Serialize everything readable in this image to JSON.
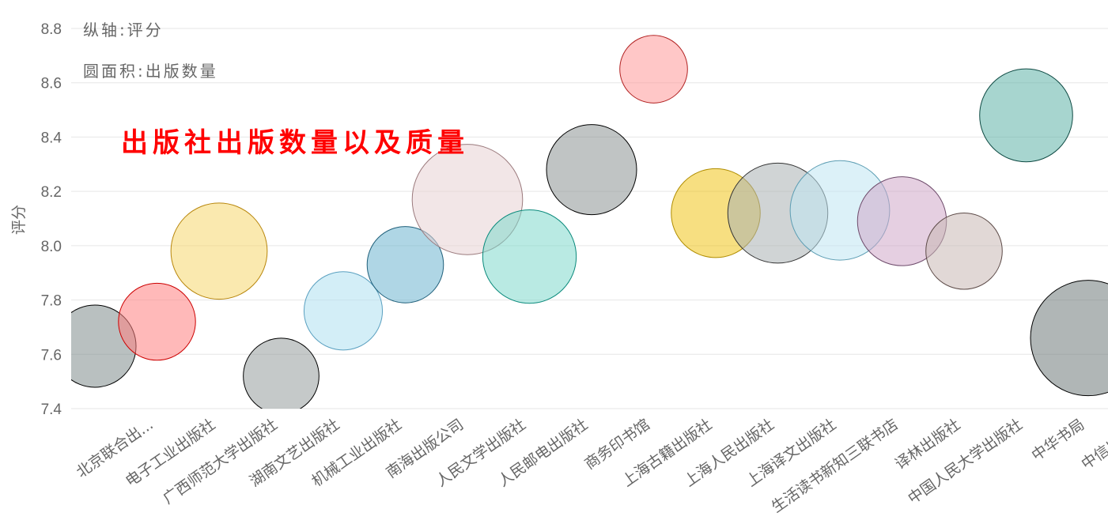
{
  "chart_data": {
    "type": "bubble",
    "title": "出版社出版数量以及质量",
    "notes": [
      "纵轴:评分",
      "圆面积:出版数量"
    ],
    "ylabel": "评分",
    "xlabel": "",
    "ylim": [
      7.4,
      8.8
    ],
    "yticks": [
      "8.8",
      "8.6",
      "8.4",
      "8.2",
      "8.0",
      "7.8",
      "7.6",
      "7.4"
    ],
    "grid": true,
    "categories": [
      "北京联合出...",
      "电子工业出版社",
      "广西师范大学出版社",
      "湖南文艺出版社",
      "机械工业出版社",
      "南海出版公司",
      "人民文学出版社",
      "人民邮电出版社",
      "商务印书馆",
      "上海古籍出版社",
      "上海人民出版社",
      "上海译文出版社",
      "生活读书新知三联书店",
      "译林出版社",
      "中国人民大学出版社",
      "中华书局",
      "中信出版社"
    ],
    "values": [
      7.63,
      7.72,
      7.98,
      7.52,
      7.76,
      7.93,
      8.17,
      7.96,
      8.28,
      8.65,
      8.12,
      8.12,
      8.13,
      8.09,
      7.98,
      8.48,
      7.66
    ],
    "size": [
      65,
      57,
      89,
      55,
      59,
      56,
      117,
      84,
      78,
      44,
      76,
      96,
      95,
      76,
      56,
      83,
      128
    ],
    "colors": [
      {
        "fill": "#7f8c8d",
        "stroke": "#000000"
      },
      {
        "fill": "#ff7f7f",
        "stroke": "#cc0000"
      },
      {
        "fill": "#f5d76e",
        "stroke": "#b8860b"
      },
      {
        "fill": "#959c9c",
        "stroke": "#000000"
      },
      {
        "fill": "#aee0f0",
        "stroke": "#5aa0c0"
      },
      {
        "fill": "#6eb4cf",
        "stroke": "#1f5f7a"
      },
      {
        "fill": "#e8d1d3",
        "stroke": "#9b7a7d"
      },
      {
        "fill": "#7fd9cc",
        "stroke": "#0b8a7c"
      },
      {
        "fill": "#8c9494",
        "stroke": "#000000"
      },
      {
        "fill": "#ff9999",
        "stroke": "#b22222"
      },
      {
        "fill": "#f0c419",
        "stroke": "#b08d00"
      },
      {
        "fill": "#a9b1b2",
        "stroke": "#333333"
      },
      {
        "fill": "#bfe6f2",
        "stroke": "#5c9db3"
      },
      {
        "fill": "#cfa8c8",
        "stroke": "#6e4b6b"
      },
      {
        "fill": "#c9b8b5",
        "stroke": "#5c4a47"
      },
      {
        "fill": "#5fb3a8",
        "stroke": "#0e4a43"
      },
      {
        "fill": "#6f7a7a",
        "stroke": "#000000"
      }
    ]
  }
}
